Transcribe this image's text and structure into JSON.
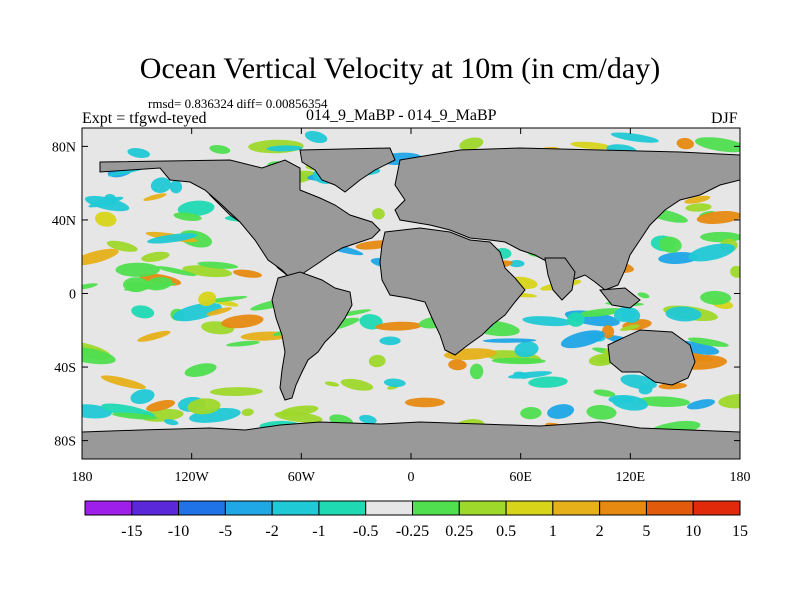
{
  "title": "Ocean Vertical Velocity at 10m (in cm/day)",
  "stats_text": "rmsd= 0.836324 diff= 0.00856354",
  "left_label": "Expt = tfgwd-teyed",
  "center_label": "014_9_MaBP - 014_9_MaBP",
  "right_label": "DJF",
  "colors": {
    "land": "#999999",
    "background_field": "#e6e6e6",
    "palette": [
      "#9e1fea",
      "#5a28d8",
      "#1f73e6",
      "#1fa7e6",
      "#20c9d6",
      "#1ed9b2",
      "#e6e6e6",
      "#4fdf4f",
      "#9ed82a",
      "#d8d41a",
      "#e6b01a",
      "#e68a12",
      "#e25a0c",
      "#e02a0a"
    ]
  },
  "chart_data": {
    "type": "heatmap",
    "title": "Ocean Vertical Velocity at 10m (in cm/day)",
    "x_axis": {
      "range": [
        -180,
        180
      ],
      "ticks": [
        -180,
        -120,
        -60,
        0,
        60,
        120,
        180
      ],
      "tick_labels": [
        "180",
        "120W",
        "60W",
        "0",
        "60E",
        "120E",
        "180"
      ]
    },
    "y_axis": {
      "range": [
        -90,
        90
      ],
      "ticks": [
        80,
        40,
        0,
        -40,
        -80
      ],
      "tick_labels": [
        "80N",
        "40N",
        "0",
        "40S",
        "80S"
      ]
    },
    "colorbar": {
      "levels": [
        -15,
        -10,
        -5,
        -2,
        -1,
        -0.5,
        -0.25,
        0.25,
        0.5,
        1,
        2,
        5,
        10,
        15
      ],
      "labels": [
        "-15",
        "-10",
        "-5",
        "-2",
        "-1",
        "-0.5",
        "-0.25",
        "0.25",
        "0.5",
        "1",
        "2",
        "5",
        "10",
        "15"
      ],
      "bins": 14
    }
  }
}
